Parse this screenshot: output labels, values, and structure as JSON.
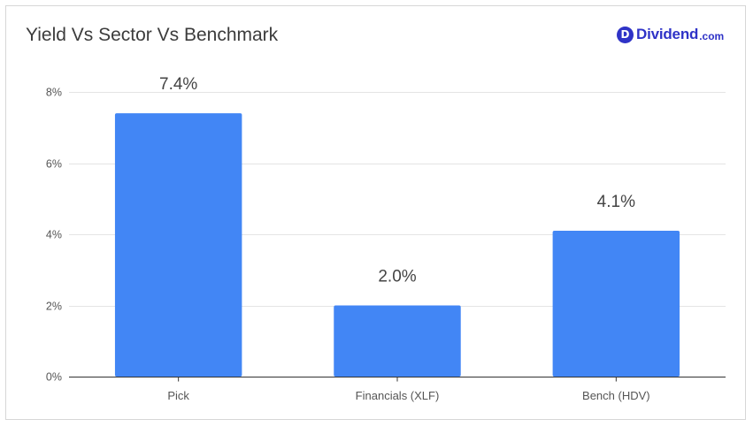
{
  "brand": {
    "icon_letter": "D",
    "name": "Dividend",
    "tld": ".com",
    "color": "#2f33c7"
  },
  "chart_data": {
    "type": "bar",
    "title": "Yield Vs Sector Vs Benchmark",
    "categories": [
      "Pick",
      "Financials (XLF)",
      "Bench (HDV)"
    ],
    "values": [
      7.4,
      2.0,
      4.1
    ],
    "value_labels": [
      "7.4%",
      "2.0%",
      "4.1%"
    ],
    "xlabel": "",
    "ylabel": "",
    "ylim": [
      0,
      8
    ],
    "yticks": [
      0,
      2,
      4,
      6,
      8
    ],
    "ytick_labels": [
      "0%",
      "2%",
      "4%",
      "6%",
      "8%"
    ],
    "grid": true,
    "legend": "none",
    "bar_color": "#4286f5"
  }
}
